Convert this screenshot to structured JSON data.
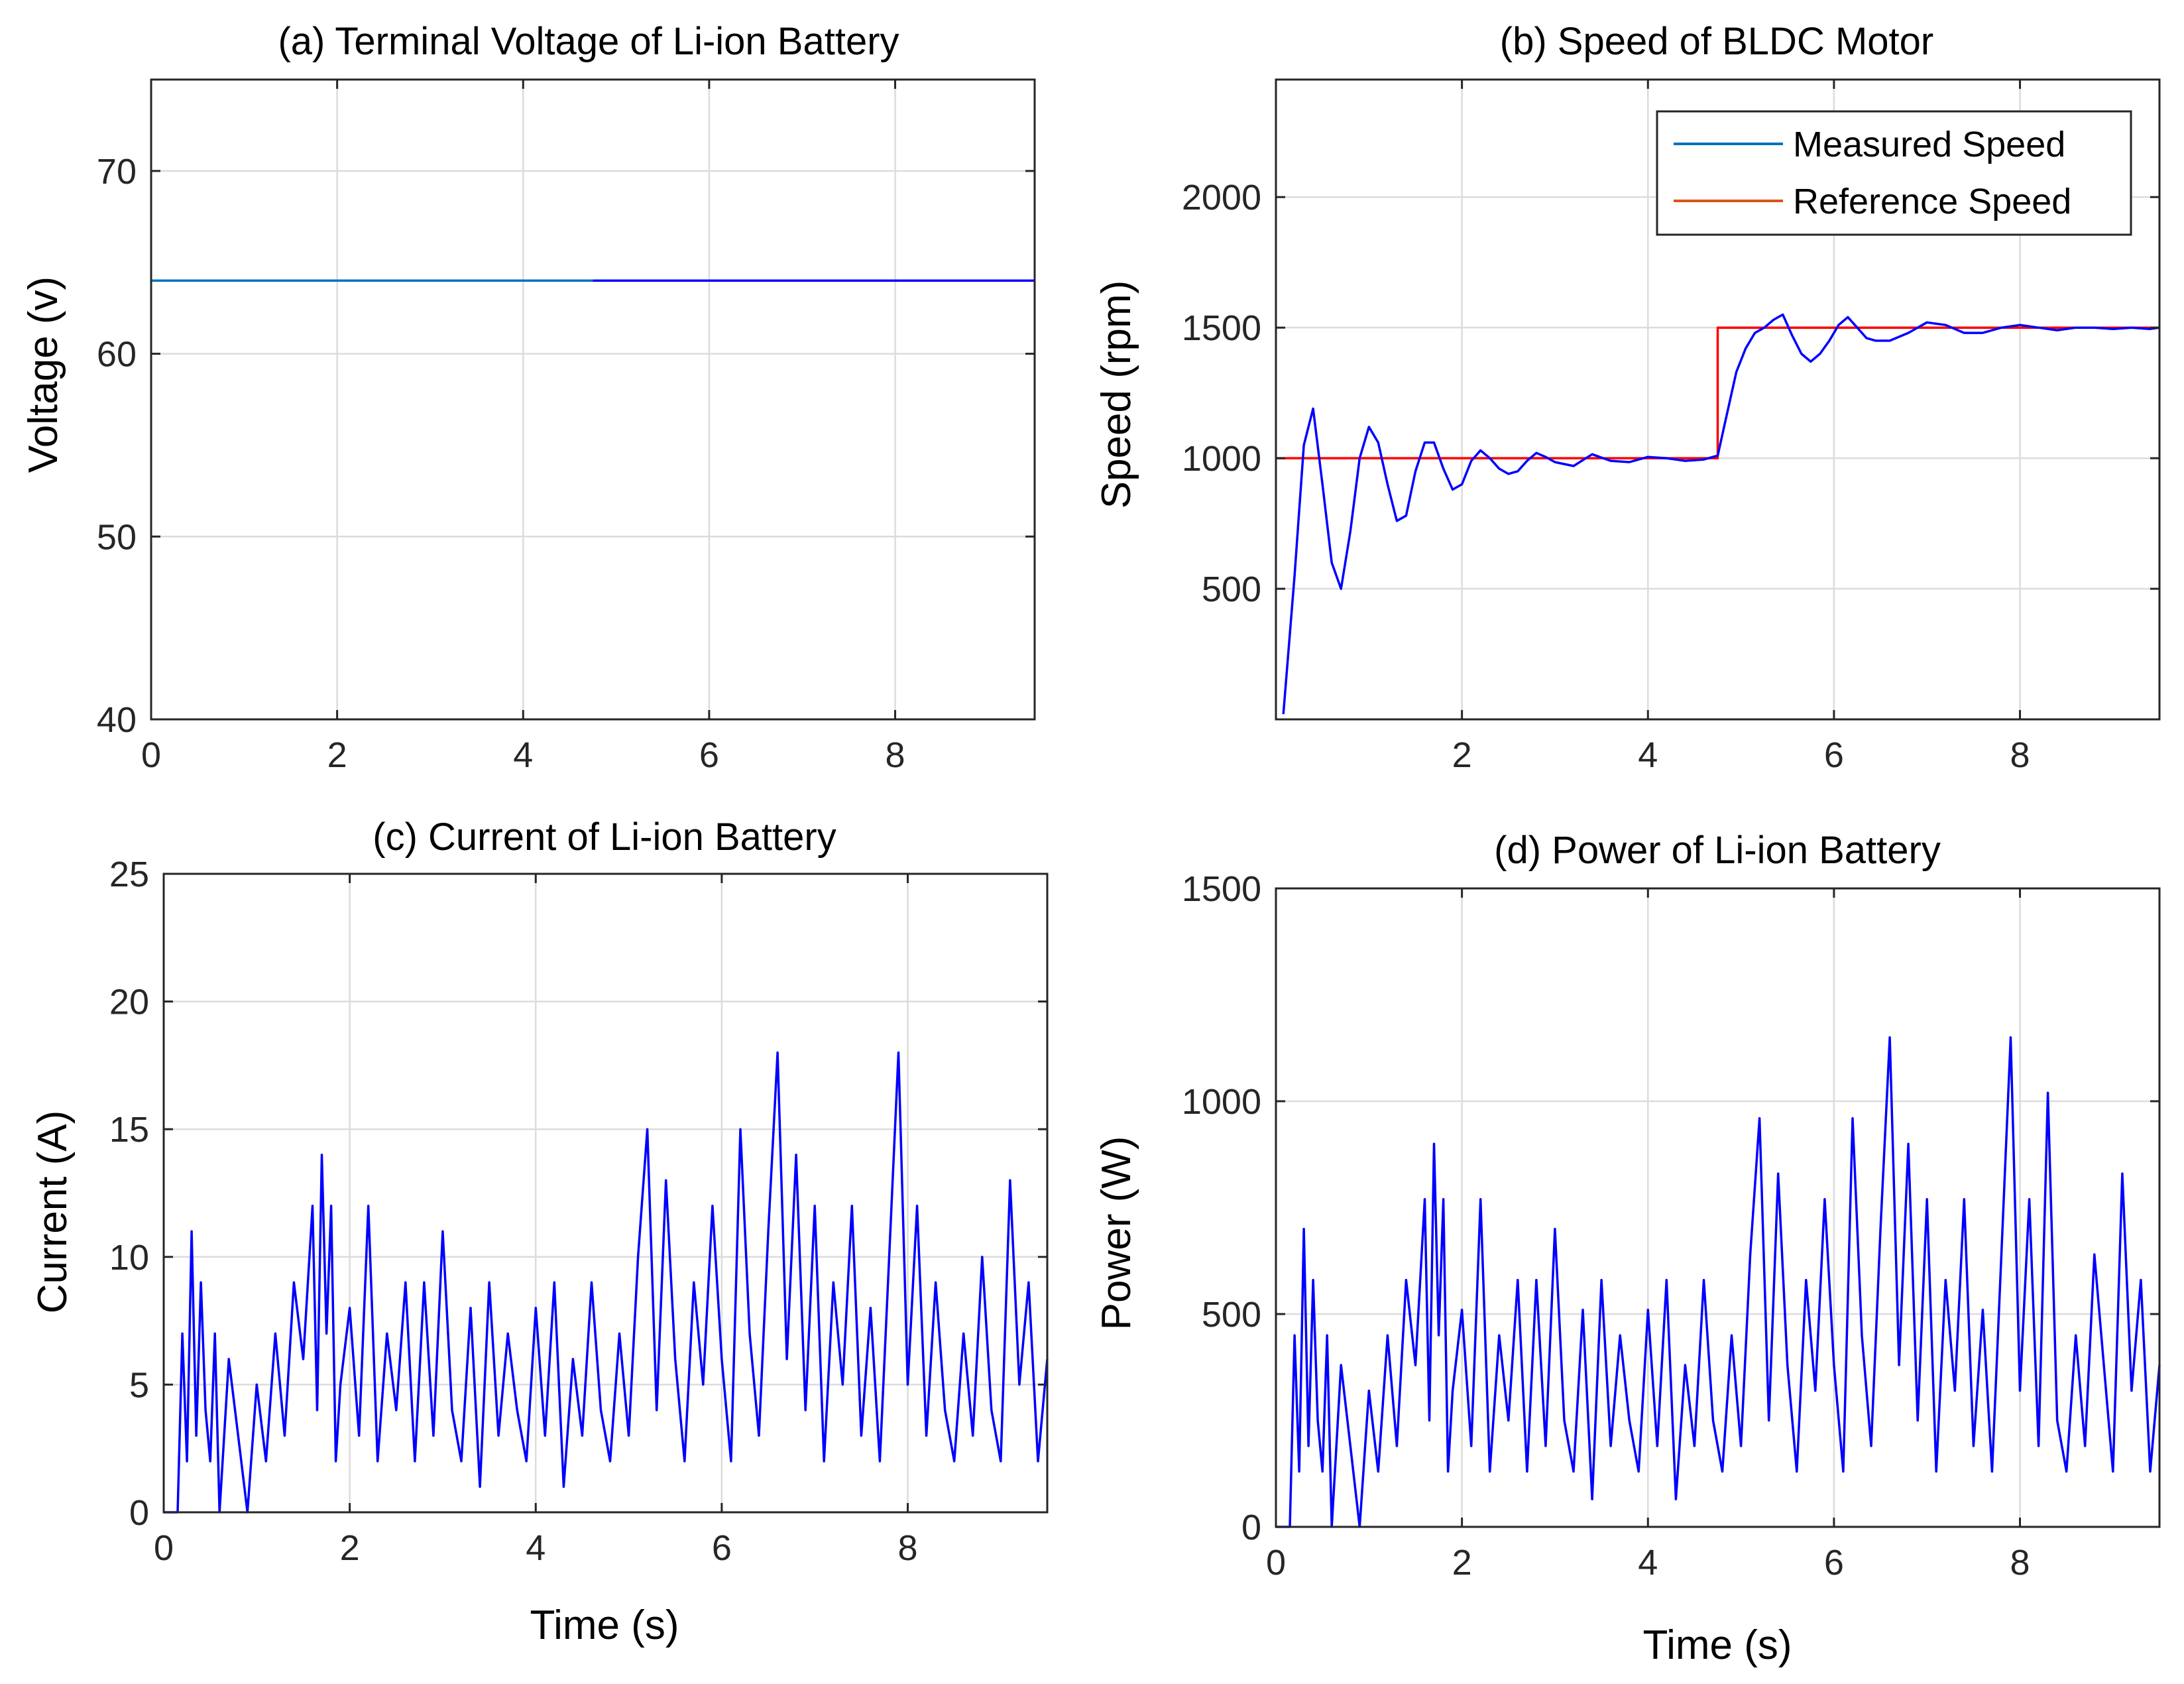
{
  "figure": {
    "panels": [
      {
        "title": "(a) Terminal Voltage of Li-ion Battery",
        "xlabel": "",
        "ylabel": "Voltage (v)",
        "xticks": [
          "0",
          "2",
          "4",
          "6",
          "8"
        ],
        "yticks": [
          "40",
          "50",
          "60",
          "70"
        ]
      },
      {
        "title": "(b) Speed of BLDC Motor",
        "xlabel": "",
        "ylabel": "Speed (rpm)",
        "xticks": [
          "2",
          "4",
          "6",
          "8"
        ],
        "yticks": [
          "500",
          "1000",
          "1500",
          "2000"
        ],
        "legend": [
          "Measured Speed",
          "Reference Speed"
        ]
      },
      {
        "title": "(c) Current of Li-ion Battery",
        "xlabel": "Time (s)",
        "ylabel": "Current (A)",
        "xticks": [
          "0",
          "2",
          "4",
          "6",
          "8"
        ],
        "yticks": [
          "0",
          "5",
          "10",
          "15",
          "20",
          "25"
        ]
      },
      {
        "title": "(d) Power of Li-ion Battery",
        "xlabel": "Time (s)",
        "ylabel": "Power (W)",
        "xticks": [
          "0",
          "2",
          "4",
          "6",
          "8"
        ],
        "yticks": [
          "0",
          "500",
          "1000",
          "1500"
        ]
      }
    ]
  },
  "chart_data": [
    {
      "type": "line",
      "title": "(a) Terminal Voltage of Li-ion Battery",
      "xlabel": "",
      "ylabel": "Voltage (v)",
      "xlim": [
        0,
        9.5
      ],
      "ylim": [
        40,
        75
      ],
      "xticks": [
        0,
        2,
        4,
        6,
        8
      ],
      "yticks": [
        40,
        50,
        60,
        70
      ],
      "grid": true,
      "series": [
        {
          "color": "#0072BD",
          "x": [
            0,
            4.75
          ],
          "y": [
            64,
            64
          ]
        },
        {
          "color": "#0000FF",
          "x": [
            4.75,
            9.5
          ],
          "y": [
            64,
            64
          ]
        }
      ]
    },
    {
      "type": "line",
      "title": "(b) Speed of BLDC Motor",
      "xlabel": "",
      "ylabel": "Speed (rpm)",
      "xlim": [
        0,
        9.5
      ],
      "ylim": [
        0,
        2450
      ],
      "xticks": [
        2,
        4,
        6,
        8
      ],
      "yticks": [
        500,
        1000,
        1500,
        2000
      ],
      "grid": true,
      "legend_position": "top-right",
      "series": [
        {
          "name": "Reference Speed",
          "color": "#FF0000",
          "x": [
            0,
            4.75,
            4.75,
            9.5
          ],
          "y": [
            1000,
            1000,
            1500,
            1500
          ]
        },
        {
          "name": "Measured Speed",
          "color": "#0000FF",
          "x": [
            0.08,
            0.2,
            0.3,
            0.4,
            0.5,
            0.6,
            0.7,
            0.8,
            0.9,
            1.0,
            1.1,
            1.2,
            1.3,
            1.4,
            1.5,
            1.6,
            1.7,
            1.8,
            1.9,
            2.0,
            2.1,
            2.2,
            2.3,
            2.4,
            2.5,
            2.6,
            2.7,
            2.8,
            2.9,
            3.0,
            3.2,
            3.4,
            3.6,
            3.8,
            4.0,
            4.2,
            4.4,
            4.6,
            4.75,
            4.85,
            4.95,
            5.05,
            5.15,
            5.25,
            5.35,
            5.45,
            5.55,
            5.65,
            5.75,
            5.85,
            5.95,
            6.05,
            6.15,
            6.25,
            6.35,
            6.45,
            6.6,
            6.8,
            7.0,
            7.2,
            7.4,
            7.6,
            7.8,
            8.0,
            8.2,
            8.4,
            8.6,
            8.8,
            9.0,
            9.2,
            9.4,
            9.5
          ],
          "y": [
            20,
            550,
            1050,
            1190,
            900,
            600,
            500,
            720,
            1000,
            1120,
            1060,
            900,
            760,
            780,
            950,
            1060,
            1060,
            960,
            880,
            900,
            990,
            1030,
            1000,
            960,
            940,
            950,
            990,
            1020,
            1005,
            985,
            970,
            1015,
            990,
            985,
            1005,
            1000,
            990,
            995,
            1010,
            1170,
            1330,
            1420,
            1480,
            1500,
            1530,
            1550,
            1470,
            1400,
            1370,
            1400,
            1450,
            1510,
            1540,
            1500,
            1460,
            1450,
            1450,
            1480,
            1520,
            1510,
            1480,
            1480,
            1500,
            1510,
            1500,
            1490,
            1500,
            1500,
            1495,
            1500,
            1495,
            1500
          ]
        }
      ]
    },
    {
      "type": "line",
      "title": "(c) Current of Li-ion Battery",
      "xlabel": "Time (s)",
      "ylabel": "Current (A)",
      "xlim": [
        0,
        9.5
      ],
      "ylim": [
        0,
        25
      ],
      "xticks": [
        0,
        2,
        4,
        6,
        8
      ],
      "yticks": [
        0,
        5,
        10,
        15,
        20,
        25
      ],
      "grid": true,
      "series": [
        {
          "color": "#0000FF",
          "x": [
            0,
            0.15,
            0.2,
            0.25,
            0.3,
            0.35,
            0.4,
            0.45,
            0.5,
            0.55,
            0.6,
            0.7,
            0.8,
            0.9,
            1.0,
            1.1,
            1.2,
            1.3,
            1.4,
            1.5,
            1.6,
            1.65,
            1.7,
            1.75,
            1.8,
            1.85,
            1.9,
            2.0,
            2.1,
            2.2,
            2.3,
            2.4,
            2.5,
            2.6,
            2.7,
            2.8,
            2.9,
            3.0,
            3.1,
            3.2,
            3.3,
            3.4,
            3.5,
            3.6,
            3.7,
            3.8,
            3.9,
            4.0,
            4.1,
            4.2,
            4.3,
            4.4,
            4.5,
            4.6,
            4.7,
            4.8,
            4.9,
            5.0,
            5.1,
            5.2,
            5.3,
            5.4,
            5.5,
            5.6,
            5.7,
            5.8,
            5.9,
            6.0,
            6.1,
            6.2,
            6.3,
            6.4,
            6.5,
            6.6,
            6.7,
            6.8,
            6.9,
            7.0,
            7.1,
            7.2,
            7.3,
            7.4,
            7.5,
            7.6,
            7.7,
            7.8,
            7.9,
            8.0,
            8.1,
            8.2,
            8.3,
            8.4,
            8.5,
            8.6,
            8.7,
            8.8,
            8.9,
            9.0,
            9.1,
            9.2,
            9.3,
            9.4,
            9.5
          ],
          "y": [
            0,
            0,
            7,
            2,
            11,
            3,
            9,
            4,
            2,
            7,
            0,
            6,
            3,
            0,
            5,
            2,
            7,
            3,
            9,
            6,
            12,
            4,
            14,
            7,
            12,
            2,
            5,
            8,
            3,
            12,
            2,
            7,
            4,
            9,
            2,
            9,
            3,
            11,
            4,
            2,
            8,
            1,
            9,
            3,
            7,
            4,
            2,
            8,
            3,
            9,
            1,
            6,
            3,
            9,
            4,
            2,
            7,
            3,
            10,
            15,
            4,
            13,
            6,
            2,
            9,
            5,
            12,
            6,
            2,
            15,
            7,
            3,
            11,
            18,
            6,
            14,
            4,
            12,
            2,
            9,
            5,
            12,
            3,
            8,
            2,
            10,
            18,
            5,
            12,
            3,
            9,
            4,
            2,
            7,
            3,
            10,
            4,
            2,
            13,
            5,
            9,
            2,
            6
          ]
        }
      ]
    },
    {
      "type": "line",
      "title": "(d) Power of Li-ion Battery",
      "xlabel": "Time (s)",
      "ylabel": "Power (W)",
      "xlim": [
        0,
        9.5
      ],
      "ylim": [
        0,
        1500
      ],
      "xticks": [
        0,
        2,
        4,
        6,
        8
      ],
      "yticks": [
        0,
        500,
        1000,
        1500
      ],
      "grid": true,
      "series": [
        {
          "color": "#0000FF",
          "x": [
            0,
            0.15,
            0.2,
            0.25,
            0.3,
            0.35,
            0.4,
            0.45,
            0.5,
            0.55,
            0.6,
            0.7,
            0.8,
            0.9,
            1.0,
            1.1,
            1.2,
            1.3,
            1.4,
            1.5,
            1.6,
            1.65,
            1.7,
            1.75,
            1.8,
            1.85,
            1.9,
            2.0,
            2.1,
            2.2,
            2.3,
            2.4,
            2.5,
            2.6,
            2.7,
            2.8,
            2.9,
            3.0,
            3.1,
            3.2,
            3.3,
            3.4,
            3.5,
            3.6,
            3.7,
            3.8,
            3.9,
            4.0,
            4.1,
            4.2,
            4.3,
            4.4,
            4.5,
            4.6,
            4.7,
            4.8,
            4.9,
            5.0,
            5.1,
            5.2,
            5.3,
            5.4,
            5.5,
            5.6,
            5.7,
            5.8,
            5.9,
            6.0,
            6.1,
            6.2,
            6.3,
            6.4,
            6.5,
            6.6,
            6.7,
            6.8,
            6.9,
            7.0,
            7.1,
            7.2,
            7.3,
            7.4,
            7.5,
            7.6,
            7.7,
            7.8,
            7.9,
            8.0,
            8.1,
            8.2,
            8.3,
            8.4,
            8.5,
            8.6,
            8.7,
            8.8,
            9.0,
            9.1,
            9.2,
            9.3,
            9.4,
            9.5
          ],
          "y": [
            0,
            0,
            450,
            130,
            700,
            190,
            580,
            250,
            130,
            450,
            0,
            380,
            190,
            0,
            320,
            130,
            450,
            190,
            580,
            380,
            770,
            250,
            900,
            450,
            770,
            130,
            320,
            510,
            190,
            770,
            130,
            450,
            250,
            580,
            130,
            580,
            190,
            700,
            250,
            130,
            510,
            65,
            580,
            190,
            450,
            250,
            130,
            510,
            190,
            580,
            65,
            380,
            190,
            580,
            250,
            130,
            450,
            190,
            640,
            960,
            250,
            830,
            380,
            130,
            580,
            320,
            770,
            380,
            130,
            960,
            450,
            190,
            700,
            1150,
            380,
            900,
            250,
            770,
            130,
            580,
            320,
            770,
            190,
            510,
            130,
            640,
            1150,
            320,
            770,
            190,
            1020,
            250,
            130,
            450,
            190,
            640,
            130,
            830,
            320,
            580,
            130,
            380
          ]
        }
      ]
    }
  ]
}
